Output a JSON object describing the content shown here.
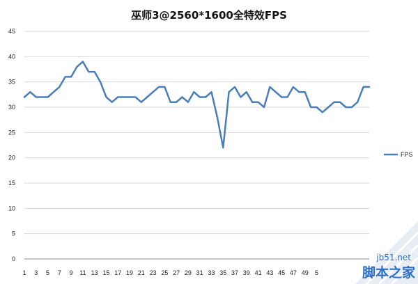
{
  "chart_data": {
    "type": "line",
    "title": "巫师3@2560*1600全特效FPS",
    "xlabel": "",
    "ylabel": "",
    "ylim": [
      0,
      45
    ],
    "yticks": [
      0,
      5,
      10,
      15,
      20,
      25,
      30,
      35,
      40,
      45
    ],
    "x_tick_labels": [
      "1",
      "3",
      "5",
      "7",
      "9",
      "11",
      "13",
      "15",
      "17",
      "19",
      "21",
      "23",
      "25",
      "27",
      "29",
      "31",
      "33",
      "35",
      "37",
      "39",
      "41",
      "43",
      "45",
      "47",
      "49",
      "5"
    ],
    "grid": true,
    "legend_position": "right",
    "series": [
      {
        "name": "FPS",
        "color": "#4a7ebb",
        "values": [
          32,
          33,
          32,
          32,
          32,
          33,
          34,
          36,
          36,
          38,
          39,
          37,
          37,
          35,
          32,
          31,
          32,
          32,
          32,
          32,
          31,
          32,
          33,
          34,
          34,
          31,
          31,
          32,
          31,
          33,
          32,
          32,
          33,
          28,
          22,
          33,
          34,
          32,
          33,
          31,
          31,
          30,
          34,
          33,
          32,
          32,
          34,
          33,
          33,
          30,
          30,
          29,
          30,
          31,
          31,
          30,
          30,
          31,
          34,
          34
        ]
      }
    ]
  },
  "watermark": {
    "site": "jb51.net",
    "name": "脚本之家",
    "accent": "#2a6fc9"
  }
}
